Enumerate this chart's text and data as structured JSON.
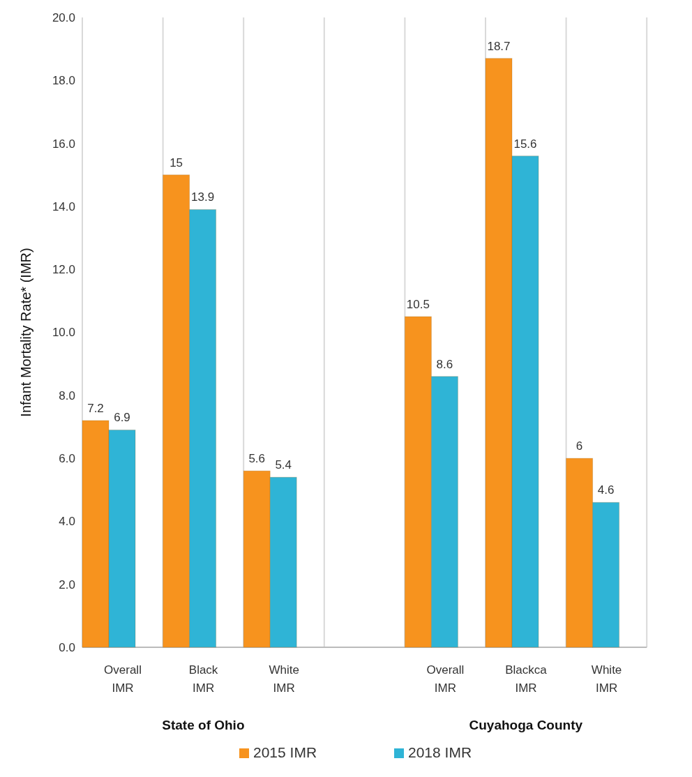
{
  "chart_data": {
    "type": "bar",
    "ylabel": "Infant Mortality Rate* (IMR)",
    "categories": [
      "Overall IMR",
      "Black IMR",
      "White IMR",
      null,
      "Overall IMR",
      "Blackca IMR",
      "White IMR"
    ],
    "series": [
      {
        "name": "2015 IMR",
        "color": "#f7931e",
        "values": [
          7.2,
          15,
          5.6,
          null,
          10.5,
          18.7,
          6
        ]
      },
      {
        "name": "2018 IMR",
        "color": "#2fb4d6",
        "values": [
          6.9,
          13.9,
          5.4,
          null,
          8.6,
          15.6,
          4.6
        ]
      }
    ],
    "annotations": [
      "State of Ohio",
      "Cuyahoga County"
    ],
    "ylim": [
      0,
      20
    ],
    "yticks": [
      {
        "value": 0,
        "label": "0.0"
      },
      {
        "value": 2,
        "label": "2.0"
      },
      {
        "value": 4,
        "label": "4.0"
      },
      {
        "value": 6,
        "label": "6.0"
      },
      {
        "value": 8,
        "label": "8.0"
      },
      {
        "value": 10,
        "label": "10.0"
      },
      {
        "value": 12,
        "label": "12.0"
      },
      {
        "value": 14,
        "label": "14.0"
      },
      {
        "value": 16,
        "label": "16.0"
      },
      {
        "value": 18,
        "label": "18.0"
      },
      {
        "value": 20,
        "label": "20.0"
      }
    ],
    "grid": "x",
    "data_labels": true,
    "legend": "bottom"
  }
}
